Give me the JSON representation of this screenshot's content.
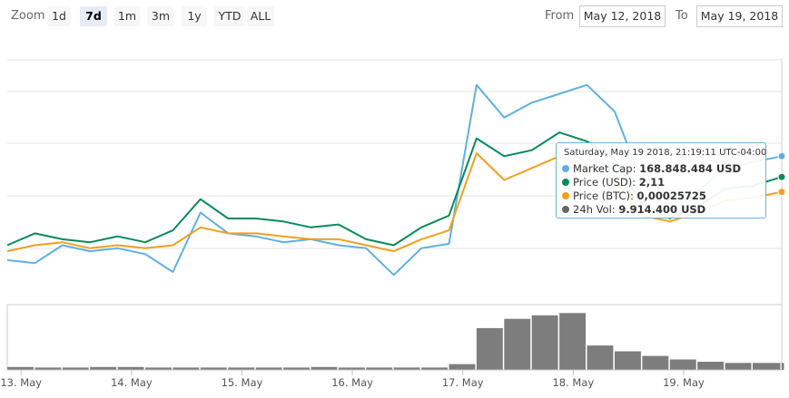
{
  "toolbar": {
    "zoom_label": "Zoom",
    "range_buttons": [
      "1d",
      "7d",
      "1m",
      "3m",
      "1y",
      "YTD",
      "ALL"
    ],
    "active_button": "7d",
    "from_label": "From",
    "from_value": "May 12, 2018",
    "to_label": "To",
    "to_value": "May 19, 2018"
  },
  "tooltip": {
    "date": "Saturday, May 19 2018, 21:19:11 UTC-04:00",
    "rows": [
      {
        "label": "Market Cap:",
        "value": "168.848.484 USD",
        "color": "#5fb0e0"
      },
      {
        "label": "Price (USD):",
        "value": "2,11",
        "color": "#0a8a5a"
      },
      {
        "label": "Price (BTC):",
        "value": "0,00025725",
        "color": "#f0a020"
      },
      {
        "label": "24h Vol:",
        "value": "9.914.400 USD",
        "color": "#666666"
      }
    ]
  },
  "chart_data": {
    "type": "line",
    "x_tick_labels": [
      "13. May",
      "14. May",
      "15. May",
      "16. May",
      "17. May",
      "18. May",
      "19. May"
    ],
    "grid": true,
    "legend": "none",
    "y_axis_labels": "none",
    "colors": {
      "market_cap": "#5fb0e0",
      "price_usd": "#0a8a5a",
      "price_btc": "#f0a020",
      "volume": "#666666"
    },
    "x": [
      "2018-05-12 21:00",
      "2018-05-13 03:00",
      "2018-05-13 09:00",
      "2018-05-13 15:00",
      "2018-05-13 21:00",
      "2018-05-14 03:00",
      "2018-05-14 09:00",
      "2018-05-14 15:00",
      "2018-05-14 21:00",
      "2018-05-15 03:00",
      "2018-05-15 09:00",
      "2018-05-15 15:00",
      "2018-05-15 21:00",
      "2018-05-16 03:00",
      "2018-05-16 09:00",
      "2018-05-16 15:00",
      "2018-05-16 21:00",
      "2018-05-17 03:00",
      "2018-05-17 09:00",
      "2018-05-17 15:00",
      "2018-05-17 21:00",
      "2018-05-18 03:00",
      "2018-05-18 09:00",
      "2018-05-18 15:00",
      "2018-05-18 21:00",
      "2018-05-19 03:00",
      "2018-05-19 09:00",
      "2018-05-19 15:00",
      "2018-05-19 21:19"
    ],
    "series": [
      {
        "key": "market_cap",
        "values": [
          0.3,
          0.28,
          0.4,
          0.36,
          0.38,
          0.34,
          0.22,
          0.62,
          0.48,
          0.46,
          0.42,
          0.44,
          0.4,
          0.38,
          0.2,
          0.38,
          0.41,
          1.48,
          1.26,
          1.36,
          1.42,
          1.48,
          1.3,
          0.82,
          0.62,
          0.76,
          0.92,
          0.96,
          1.0
        ]
      },
      {
        "key": "price_usd",
        "values": [
          0.4,
          0.48,
          0.44,
          0.42,
          0.46,
          0.42,
          0.5,
          0.71,
          0.58,
          0.58,
          0.56,
          0.52,
          0.54,
          0.44,
          0.4,
          0.52,
          0.6,
          1.12,
          1.0,
          1.04,
          1.16,
          1.1,
          0.98,
          0.68,
          0.58,
          0.66,
          0.78,
          0.8,
          0.86
        ]
      },
      {
        "key": "price_btc",
        "values": [
          0.36,
          0.4,
          0.42,
          0.38,
          0.4,
          0.38,
          0.4,
          0.52,
          0.48,
          0.48,
          0.46,
          0.44,
          0.44,
          0.4,
          0.36,
          0.44,
          0.5,
          1.02,
          0.84,
          0.92,
          1.0,
          0.94,
          0.84,
          0.6,
          0.56,
          0.62,
          0.7,
          0.72,
          0.76
        ]
      },
      {
        "key": "volume",
        "values": [
          0.05,
          0.04,
          0.04,
          0.05,
          0.05,
          0.04,
          0.04,
          0.04,
          0.04,
          0.04,
          0.04,
          0.05,
          0.04,
          0.04,
          0.04,
          0.04,
          0.1,
          0.72,
          0.88,
          0.94,
          0.98,
          0.42,
          0.32,
          0.24,
          0.18,
          0.14,
          0.12,
          0.12,
          0.12
        ]
      }
    ]
  }
}
